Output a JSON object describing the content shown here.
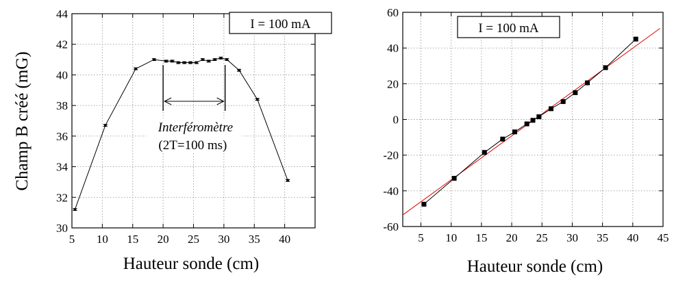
{
  "chart_data": [
    {
      "type": "line",
      "xlabel": "Hauteur sonde (cm)",
      "ylabel": "Champ B créé (mG)",
      "xlim": [
        5,
        45
      ],
      "ylim": [
        30,
        44
      ],
      "grid": true,
      "x_ticks": [
        5,
        10,
        15,
        20,
        25,
        30,
        35,
        40
      ],
      "y_ticks": [
        30,
        32,
        34,
        36,
        38,
        40,
        42,
        44
      ],
      "legend_text": "I = 100 mA",
      "annotations": {
        "label_line1": "Interféromètre",
        "label_line2": "(2T=100 ms)",
        "span_x": [
          20,
          30.2
        ]
      },
      "series": [
        {
          "markers": "error-bar",
          "x": [
            5.5,
            10.5,
            15.5,
            18.5,
            20.5,
            21.5,
            22.5,
            23.5,
            24.5,
            25.5,
            26.5,
            27.5,
            28.5,
            29.5,
            30.5,
            32.5,
            35.5,
            40.5
          ],
          "y": [
            31.2,
            36.7,
            40.4,
            41.0,
            40.9,
            40.9,
            40.8,
            40.8,
            40.8,
            40.8,
            41.0,
            40.9,
            41.0,
            41.1,
            41.0,
            40.3,
            38.4,
            33.1
          ],
          "err": [
            0.06,
            0.06,
            0.06,
            0.06,
            0.06,
            0.06,
            0.06,
            0.06,
            0.06,
            0.06,
            0.06,
            0.06,
            0.06,
            0.06,
            0.06,
            0.06,
            0.06,
            0.06
          ]
        }
      ]
    },
    {
      "type": "scatter",
      "xlabel": "Hauteur sonde (cm)",
      "ylabel": "",
      "xlim": [
        2,
        45
      ],
      "ylim": [
        -60,
        60
      ],
      "grid": true,
      "x_ticks": [
        5,
        10,
        15,
        20,
        25,
        30,
        35,
        40,
        45
      ],
      "y_ticks": [
        -60,
        -40,
        -20,
        0,
        20,
        40,
        60
      ],
      "legend_text": "I = 100 mA",
      "series": [
        {
          "markers": "square",
          "x": [
            5.5,
            10.5,
            15.5,
            18.5,
            20.5,
            22.5,
            23.5,
            24.5,
            26.5,
            28.5,
            30.5,
            32.5,
            35.5,
            40.5
          ],
          "y": [
            -47.5,
            -33,
            -18.5,
            -11,
            -7,
            -2.5,
            -0.5,
            1.5,
            6,
            10,
            15,
            20.5,
            29,
            45
          ]
        }
      ],
      "fit_line": {
        "color": "#e00000",
        "x": [
          2,
          44.5
        ],
        "y": [
          -53.5,
          51
        ]
      }
    }
  ]
}
